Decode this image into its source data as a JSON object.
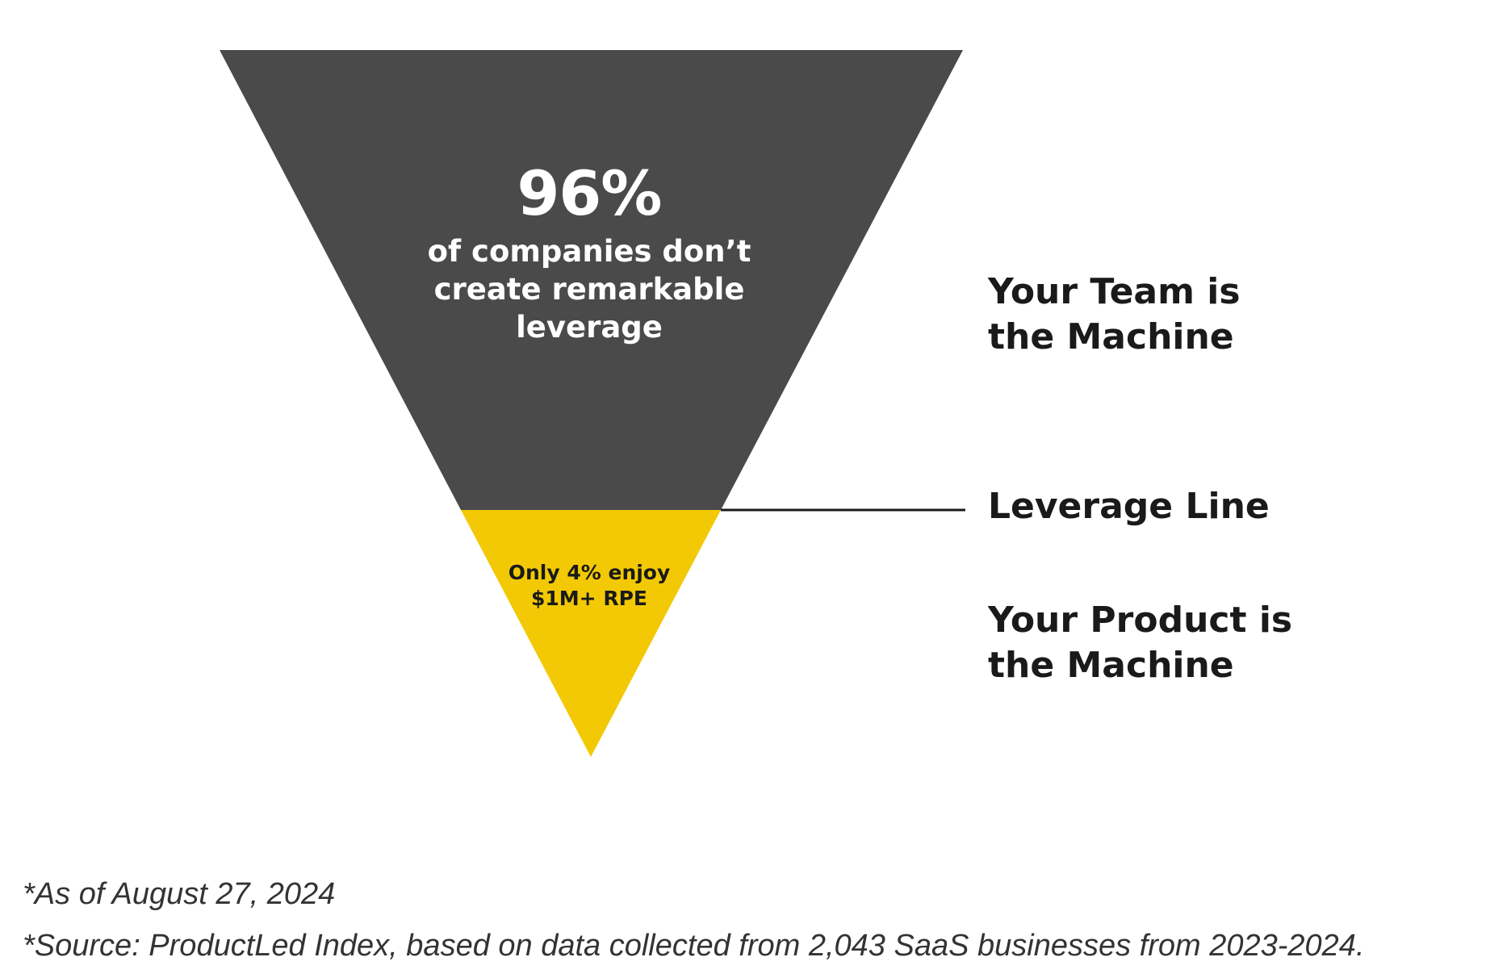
{
  "colors": {
    "top_fill": "#4a4a4a",
    "bottom_fill": "#f2c904",
    "line": "#1a1a1a",
    "top_text": "#ffffff",
    "bottom_text": "#1a1a1a"
  },
  "funnel": {
    "top_section": {
      "stat": "96%",
      "caption": "of companies don’t create remarkable leverage"
    },
    "bottom_section": {
      "caption": "Only 4% enjoy $1M+ RPE"
    }
  },
  "labels": {
    "team": "Your Team is\nthe Machine",
    "leverage_line": "Leverage Line",
    "product": "Your Product is\nthe Machine"
  },
  "footnotes": {
    "date": "*As of August 27, 2024",
    "source": "*Source: ProductLed Index, based on data collected from 2,043 SaaS businesses from 2023-2024."
  }
}
